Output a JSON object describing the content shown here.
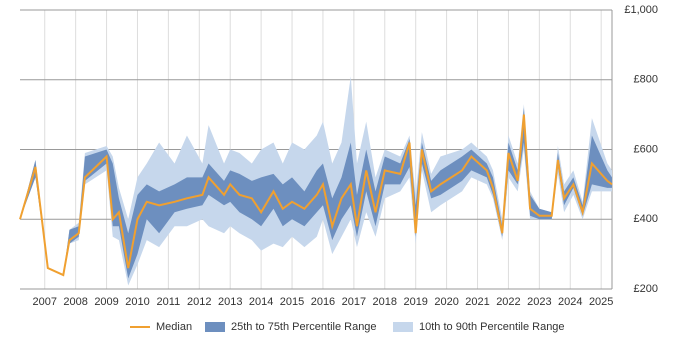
{
  "chart_data": {
    "type": "line",
    "legend": "bottom",
    "grid": true,
    "xlim": [
      2006.2,
      2025.35
    ],
    "xticks": [
      2007,
      2008,
      2009,
      2010,
      2011,
      2012,
      2013,
      2014,
      2015,
      2016,
      2017,
      2018,
      2019,
      2020,
      2021,
      2022,
      2023,
      2024,
      2025
    ],
    "ylim": [
      200,
      1000
    ],
    "yticks": [
      {
        "value": 200,
        "label": "£200"
      },
      {
        "value": 400,
        "label": "£400"
      },
      {
        "value": 600,
        "label": "£600"
      },
      {
        "value": 800,
        "label": "£800"
      },
      {
        "value": 1000,
        "label": "£1,000"
      }
    ],
    "x": [
      2006.2,
      2006.7,
      2007.1,
      2007.6,
      2007.8,
      2008.1,
      2008.3,
      2009.0,
      2009.2,
      2009.4,
      2009.7,
      2010.0,
      2010.3,
      2010.7,
      2011.2,
      2011.6,
      2012.1,
      2012.3,
      2012.8,
      2013.0,
      2013.3,
      2013.7,
      2014.0,
      2014.4,
      2014.7,
      2015.0,
      2015.4,
      2015.8,
      2016.0,
      2016.3,
      2016.6,
      2016.9,
      2017.1,
      2017.4,
      2017.7,
      2018.0,
      2018.5,
      2018.8,
      2019.0,
      2019.2,
      2019.5,
      2019.8,
      2020.5,
      2020.8,
      2021.3,
      2021.5,
      2021.8,
      2022.0,
      2022.3,
      2022.5,
      2022.7,
      2023.0,
      2023.4,
      2023.6,
      2023.8,
      2024.1,
      2024.4,
      2024.7,
      2025.2,
      2025.35
    ],
    "series": [
      {
        "name": "Median",
        "style": "line",
        "color": "#f0a030",
        "values": [
          400,
          550,
          260,
          240,
          340,
          360,
          520,
          580,
          400,
          420,
          260,
          400,
          450,
          440,
          450,
          460,
          470,
          520,
          470,
          500,
          470,
          460,
          420,
          480,
          430,
          450,
          430,
          470,
          500,
          380,
          460,
          500,
          380,
          540,
          420,
          540,
          530,
          620,
          360,
          600,
          480,
          500,
          540,
          580,
          540,
          490,
          360,
          590,
          510,
          700,
          430,
          410,
          410,
          570,
          460,
          500,
          420,
          560,
          510,
          500
        ]
      },
      {
        "name": "25th to 75th Percentile Range",
        "style": "band",
        "color": "#6d8fbf",
        "values": [
          400,
          570,
          260,
          240,
          370,
          380,
          580,
          600,
          560,
          460,
          360,
          470,
          500,
          480,
          500,
          520,
          520,
          560,
          510,
          540,
          530,
          510,
          520,
          530,
          500,
          520,
          480,
          540,
          560,
          460,
          520,
          620,
          470,
          600,
          480,
          580,
          560,
          630,
          440,
          620,
          510,
          540,
          580,
          600,
          560,
          520,
          380,
          620,
          540,
          720,
          470,
          430,
          420,
          590,
          480,
          520,
          440,
          640,
          540,
          520
        ],
        "lower": [
          400,
          520,
          260,
          240,
          330,
          350,
          510,
          560,
          380,
          380,
          230,
          300,
          400,
          360,
          420,
          430,
          440,
          470,
          440,
          450,
          420,
          400,
          380,
          430,
          380,
          400,
          380,
          420,
          440,
          340,
          400,
          440,
          350,
          480,
          380,
          500,
          500,
          550,
          350,
          560,
          460,
          470,
          510,
          540,
          520,
          470,
          350,
          540,
          500,
          620,
          410,
          400,
          400,
          550,
          440,
          490,
          410,
          500,
          490,
          490
        ]
      },
      {
        "name": "10th to 90th Percentile Range",
        "style": "band",
        "color": "#c6d7ec",
        "values": [
          400,
          570,
          260,
          240,
          370,
          390,
          590,
          610,
          580,
          490,
          400,
          520,
          560,
          620,
          560,
          640,
          560,
          670,
          560,
          600,
          590,
          560,
          600,
          620,
          560,
          620,
          600,
          640,
          680,
          560,
          620,
          810,
          560,
          680,
          520,
          600,
          580,
          640,
          470,
          650,
          530,
          580,
          600,
          620,
          580,
          540,
          400,
          640,
          560,
          730,
          480,
          430,
          420,
          610,
          500,
          540,
          450,
          690,
          560,
          540
        ],
        "lower": [
          400,
          520,
          260,
          240,
          330,
          340,
          500,
          540,
          350,
          340,
          210,
          270,
          340,
          320,
          380,
          380,
          400,
          380,
          360,
          380,
          360,
          340,
          310,
          330,
          320,
          350,
          320,
          350,
          400,
          300,
          350,
          400,
          320,
          420,
          350,
          460,
          480,
          520,
          330,
          540,
          420,
          440,
          480,
          520,
          500,
          460,
          340,
          520,
          480,
          600,
          400,
          400,
          400,
          530,
          420,
          470,
          400,
          480,
          480,
          480
        ]
      }
    ]
  }
}
